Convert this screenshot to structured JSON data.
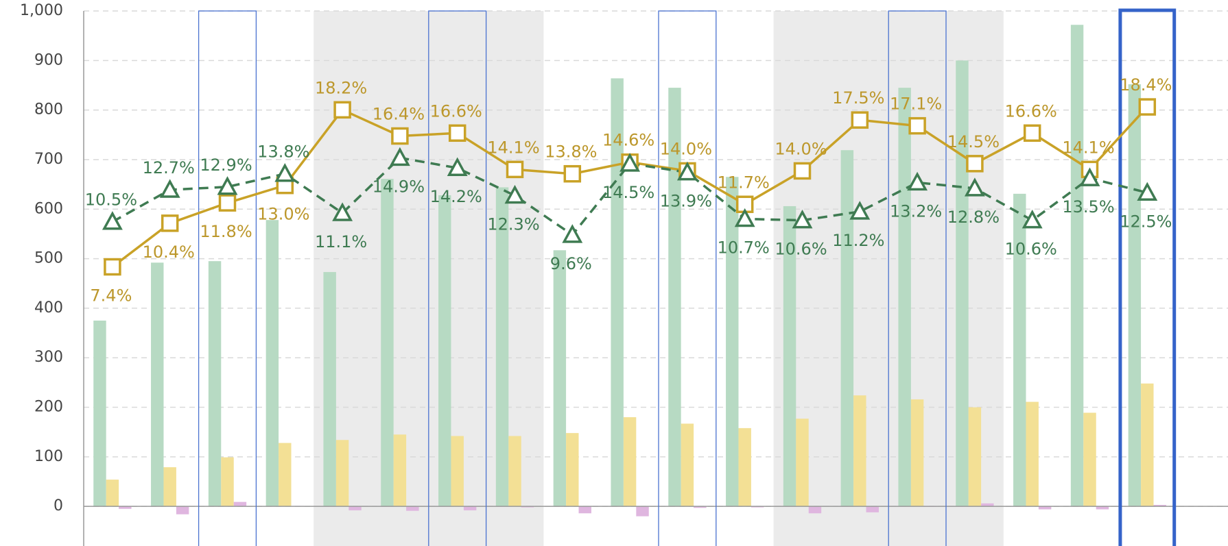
{
  "chart_data": {
    "type": "bar",
    "categories": [
      null,
      null,
      null,
      null,
      null,
      null,
      null,
      null,
      null,
      null,
      null,
      null,
      null,
      null,
      null,
      null,
      null,
      null,
      null
    ],
    "ylim": [
      -80,
      1000
    ],
    "yticks": [
      0,
      100,
      200,
      300,
      400,
      500,
      600,
      700,
      800,
      900,
      {
        "value": 1000,
        "label": "1,000"
      }
    ],
    "y2lim": [
      -11.8,
      25
    ],
    "grid": true,
    "shaded": [
      [
        4,
        7
      ],
      [
        12,
        15
      ]
    ],
    "outlined": [
      2,
      6,
      10,
      14
    ],
    "selected": 18,
    "series": [
      {
        "type": "bar",
        "color": "#b7dac3",
        "values": [
          375,
          492,
          495,
          578,
          473,
          661,
          628,
          644,
          517,
          864,
          845,
          665,
          606,
          719,
          845,
          900,
          631,
          972,
          852
        ]
      },
      {
        "type": "bar",
        "color": "#f3e095",
        "values": [
          54,
          79,
          99,
          128,
          134,
          145,
          142,
          142,
          148,
          180,
          167,
          158,
          177,
          224,
          216,
          200,
          211,
          189,
          248
        ]
      },
      {
        "type": "bar",
        "color": "#dfb6df",
        "values": [
          -5,
          -16,
          9,
          1,
          -8,
          -9,
          -8,
          -2,
          -14,
          -20,
          -3,
          -2,
          -14,
          -12,
          -1,
          6,
          -6,
          -6,
          3
        ]
      },
      {
        "type": "line",
        "axis": "y2",
        "marker": "square",
        "dashed": false,
        "color": "#c9a227",
        "label_color": "#bc972b",
        "values": [
          7.4,
          10.4,
          11.8,
          13.0,
          18.2,
          16.4,
          16.6,
          14.1,
          13.8,
          14.6,
          14.0,
          11.7,
          14.0,
          17.5,
          17.1,
          14.5,
          16.6,
          14.1,
          18.4
        ],
        "value_labels": [
          "7.4%",
          "10.4%",
          "11.8%",
          "13.0%",
          "18.2%",
          "16.4%",
          "16.6%",
          "14.1%",
          "13.8%",
          "14.6%",
          "14.0%",
          "11.7%",
          "14.0%",
          "17.5%",
          "17.1%",
          "14.5%",
          "16.6%",
          "14.1%",
          "18.4%"
        ]
      },
      {
        "type": "line",
        "axis": "y2",
        "marker": "triangle",
        "dashed": true,
        "color": "#3f7b52",
        "label_color": "#3f7b52",
        "values": [
          10.5,
          12.7,
          12.9,
          13.8,
          11.1,
          14.9,
          14.2,
          12.3,
          9.6,
          14.5,
          13.9,
          10.7,
          10.6,
          11.2,
          13.2,
          12.8,
          10.6,
          13.5,
          12.5
        ],
        "value_labels": [
          "10.5%",
          "12.7%",
          "12.9%",
          "13.8%",
          "11.1%",
          "14.9%",
          "14.2%",
          "12.3%",
          "9.6%",
          "14.5%",
          "13.9%",
          "10.7%",
          "10.6%",
          "11.2%",
          "13.2%",
          "12.8%",
          "10.6%",
          "13.5%",
          "12.5%"
        ]
      }
    ]
  }
}
